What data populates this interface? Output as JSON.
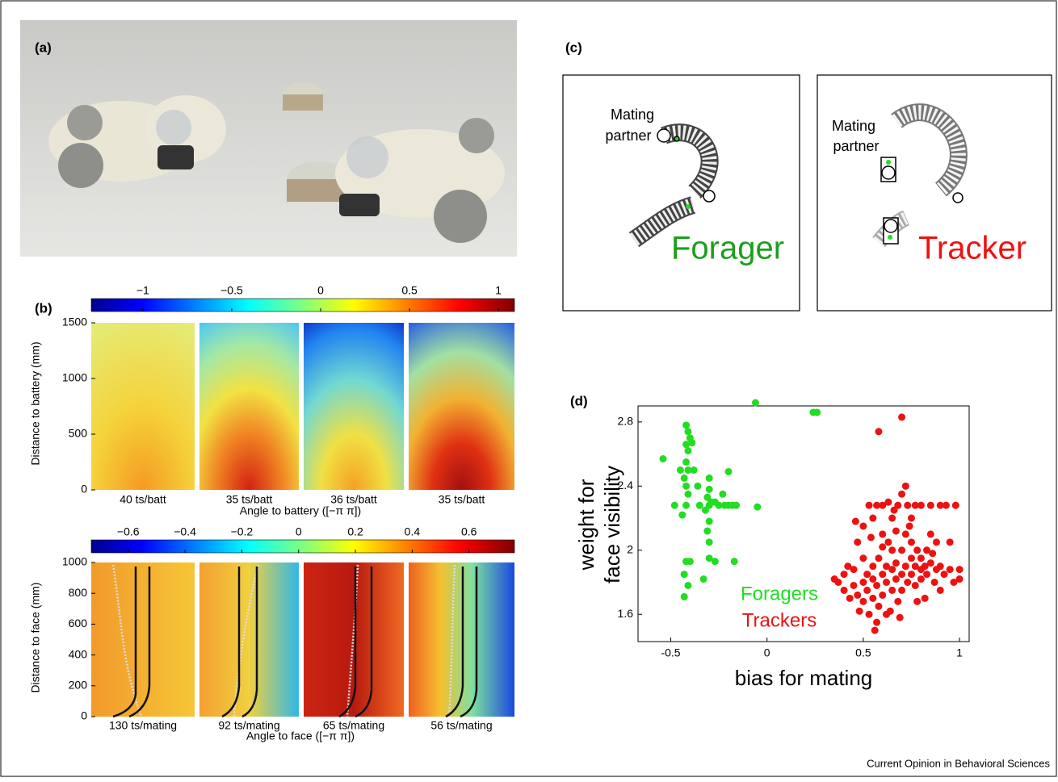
{
  "panel_a": {
    "label": "(a)"
  },
  "panel_b": {
    "label": "(b)",
    "top": {
      "colorbar_lim": [
        -1.29,
        1.09
      ],
      "colorbar_ticks": [
        {
          "value": -1,
          "label": "−1"
        },
        {
          "value": -0.5,
          "label": "−0.5"
        },
        {
          "value": 0,
          "label": "0"
        },
        {
          "value": 0.5,
          "label": "0.5"
        },
        {
          "value": 1,
          "label": "1"
        }
      ],
      "ylabel": "Distance to battery (mm)",
      "ylim": [
        0,
        1500
      ],
      "yticks": [
        0,
        500,
        1000,
        1500
      ],
      "subplots": [
        "40 ts/batt",
        "35 ts/batt",
        "36 ts/batt",
        "35 ts/batt"
      ],
      "xlabel": "Angle to battery ([−π π])"
    },
    "bottom": {
      "colorbar_lim": [
        -0.73,
        0.76
      ],
      "colorbar_ticks": [
        {
          "value": -0.6,
          "label": "−0.6"
        },
        {
          "value": -0.4,
          "label": "−0.4"
        },
        {
          "value": -0.2,
          "label": "−0.2"
        },
        {
          "value": 0,
          "label": "0"
        },
        {
          "value": 0.2,
          "label": "0.2"
        },
        {
          "value": 0.4,
          "label": "0.4"
        },
        {
          "value": 0.6,
          "label": "0.6"
        }
      ],
      "ylabel": "Distance to face (mm)",
      "ylim": [
        0,
        1000
      ],
      "yticks": [
        0,
        200,
        400,
        600,
        800,
        1000
      ],
      "subplots": [
        "130 ts/mating",
        "92 ts/mating",
        "65 ts/mating",
        "56 ts/mating"
      ],
      "xlabel": "Angle to face ([−π π])"
    }
  },
  "panel_c": {
    "label": "(c)",
    "forager": {
      "partner_label": [
        "Mating",
        "partner"
      ],
      "role": "Forager"
    },
    "tracker": {
      "partner_label": [
        "Mating",
        "partner"
      ],
      "role": "Tracker"
    }
  },
  "panel_d": {
    "label": "(d)"
  },
  "chart_data": {
    "type": "scatter",
    "xlabel": "bias for mating",
    "ylabel": [
      "weight for",
      "face visibility"
    ],
    "xlim": [
      -0.67,
      1.05
    ],
    "xticks": [
      -0.5,
      0,
      0.5,
      1
    ],
    "ylim": [
      1.43,
      2.9
    ],
    "yticks": [
      1.6,
      2,
      2.4,
      2.8
    ],
    "series": [
      {
        "name": "Foragers",
        "color": "#22dd22",
        "x": [
          -0.54,
          -0.06,
          0.24,
          0.26,
          -0.05,
          -0.42,
          -0.41,
          -0.4,
          -0.42,
          -0.39,
          -0.41,
          -0.42,
          -0.45,
          -0.41,
          -0.38,
          -0.43,
          -0.42,
          -0.41,
          -0.48,
          -0.42,
          -0.44,
          -0.42,
          -0.4,
          -0.43,
          -0.41,
          -0.43,
          -0.33,
          -0.3,
          -0.3,
          -0.31,
          -0.3,
          -0.32,
          -0.29,
          -0.3,
          -0.31,
          -0.3,
          -0.3,
          -0.27,
          -0.25,
          -0.23,
          -0.22,
          -0.2,
          -0.18,
          -0.16,
          -0.2,
          -0.27,
          -0.17,
          -0.35,
          -0.36
        ],
        "y": [
          2.57,
          2.92,
          2.86,
          2.86,
          2.27,
          2.78,
          2.74,
          2.7,
          2.66,
          2.67,
          2.62,
          2.55,
          2.5,
          2.5,
          2.5,
          2.45,
          2.4,
          2.35,
          2.28,
          2.28,
          2.22,
          1.93,
          1.93,
          1.85,
          1.78,
          1.71,
          1.82,
          2.45,
          2.38,
          2.33,
          2.28,
          2.25,
          2.3,
          2.18,
          2.12,
          2.05,
          1.95,
          2.3,
          2.28,
          2.35,
          2.28,
          2.28,
          2.28,
          2.28,
          2.49,
          1.93,
          1.93,
          2.28,
          2.4
        ]
      },
      {
        "name": "Trackers",
        "color": "#ee1111",
        "x": [
          0.35,
          0.37,
          0.4,
          0.4,
          0.42,
          0.43,
          0.45,
          0.45,
          0.47,
          0.47,
          0.48,
          0.5,
          0.5,
          0.5,
          0.5,
          0.52,
          0.52,
          0.53,
          0.53,
          0.55,
          0.55,
          0.55,
          0.55,
          0.56,
          0.57,
          0.57,
          0.57,
          0.58,
          0.58,
          0.58,
          0.6,
          0.6,
          0.6,
          0.6,
          0.62,
          0.62,
          0.62,
          0.63,
          0.63,
          0.65,
          0.65,
          0.65,
          0.65,
          0.67,
          0.67,
          0.67,
          0.68,
          0.68,
          0.7,
          0.7,
          0.7,
          0.7,
          0.7,
          0.72,
          0.72,
          0.72,
          0.73,
          0.73,
          0.75,
          0.75,
          0.75,
          0.75,
          0.77,
          0.77,
          0.77,
          0.78,
          0.8,
          0.8,
          0.8,
          0.8,
          0.82,
          0.82,
          0.83,
          0.85,
          0.85,
          0.85,
          0.87,
          0.88,
          0.88,
          0.9,
          0.9,
          0.92,
          0.93,
          0.95,
          0.95,
          0.97,
          0.98,
          1.0,
          1.0,
          0.46,
          0.54,
          0.64,
          0.69,
          0.78,
          0.6,
          0.66,
          0.74,
          0.83,
          0.86,
          0.9
        ],
        "y": [
          1.82,
          1.8,
          1.85,
          1.75,
          1.9,
          1.7,
          1.78,
          1.88,
          2.05,
          1.72,
          1.62,
          1.8,
          1.95,
          2.15,
          1.68,
          1.85,
          1.75,
          2.28,
          1.6,
          1.9,
          1.82,
          1.7,
          2.2,
          1.5,
          1.55,
          1.78,
          2.28,
          1.65,
          1.95,
          2.74,
          1.85,
          1.72,
          2.1,
          2.28,
          1.8,
          1.9,
          1.6,
          2.05,
          2.3,
          1.88,
          2.2,
          1.75,
          2.0,
          1.82,
          2.12,
          1.92,
          2.28,
          1.68,
          2.0,
          1.85,
          2.35,
          2.83,
          1.75,
          2.1,
          1.9,
          2.4,
          1.8,
          2.28,
          2.05,
          1.95,
          1.85,
          2.2,
          1.78,
          1.9,
          2.28,
          2.0,
          1.88,
          1.82,
          2.28,
          1.95,
          1.9,
          1.7,
          1.85,
          2.1,
          1.92,
          2.28,
          1.8,
          1.88,
          2.05,
          1.9,
          1.75,
          1.85,
          2.28,
          1.88,
          2.05,
          1.8,
          2.28,
          1.88,
          1.82,
          2.18,
          2.08,
          1.62,
          1.58,
          1.68,
          2.02,
          2.25,
          2.15,
          2.0,
          1.98,
          2.28
        ]
      }
    ]
  },
  "footer": "Current Opinion in Behavioral Sciences"
}
